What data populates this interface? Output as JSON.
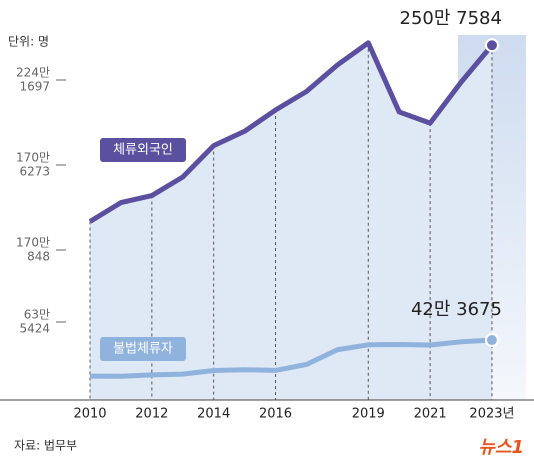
{
  "chart_data": {
    "type": "line",
    "unit": "단위: 명",
    "source": "자료: 법무부",
    "logo": "뉴스1",
    "categories": [
      "2010",
      null,
      "2012",
      null,
      "2014",
      null,
      "2016",
      null,
      null,
      "2019",
      null,
      "2021",
      null,
      "2023년"
    ],
    "ylim": [
      0,
      2700000
    ],
    "axis_labels": [
      [
        "224만",
        "1697"
      ],
      [
        "170만",
        "6273"
      ],
      [
        "170만",
        "848"
      ],
      [
        "63만",
        "5424"
      ]
    ],
    "series": [
      {
        "name": "체류외국인",
        "color": "#5b4fa0",
        "values": [
          1261415,
          1395077,
          1445103,
          1576034,
          1797618,
          1899519,
          2049441,
          2180498,
          2367607,
          2524656,
          2036075,
          1956781,
          2245912,
          2507584
        ],
        "value_labels": [
          null,
          null,
          null,
          null,
          null,
          null,
          null,
          null,
          null,
          null,
          null,
          null,
          null,
          "250만 7584"
        ]
      },
      {
        "name": "불법체류자",
        "color": "#8fb3dc",
        "values": [
          168515,
          167780,
          177854,
          183106,
          208778,
          214168,
          208971,
          251041,
          355126,
          390281,
          392196,
          388700,
          411270,
          423675
        ],
        "value_labels": [
          null,
          null,
          null,
          null,
          null,
          null,
          null,
          null,
          null,
          null,
          null,
          null,
          null,
          "42만 3675"
        ]
      }
    ]
  }
}
